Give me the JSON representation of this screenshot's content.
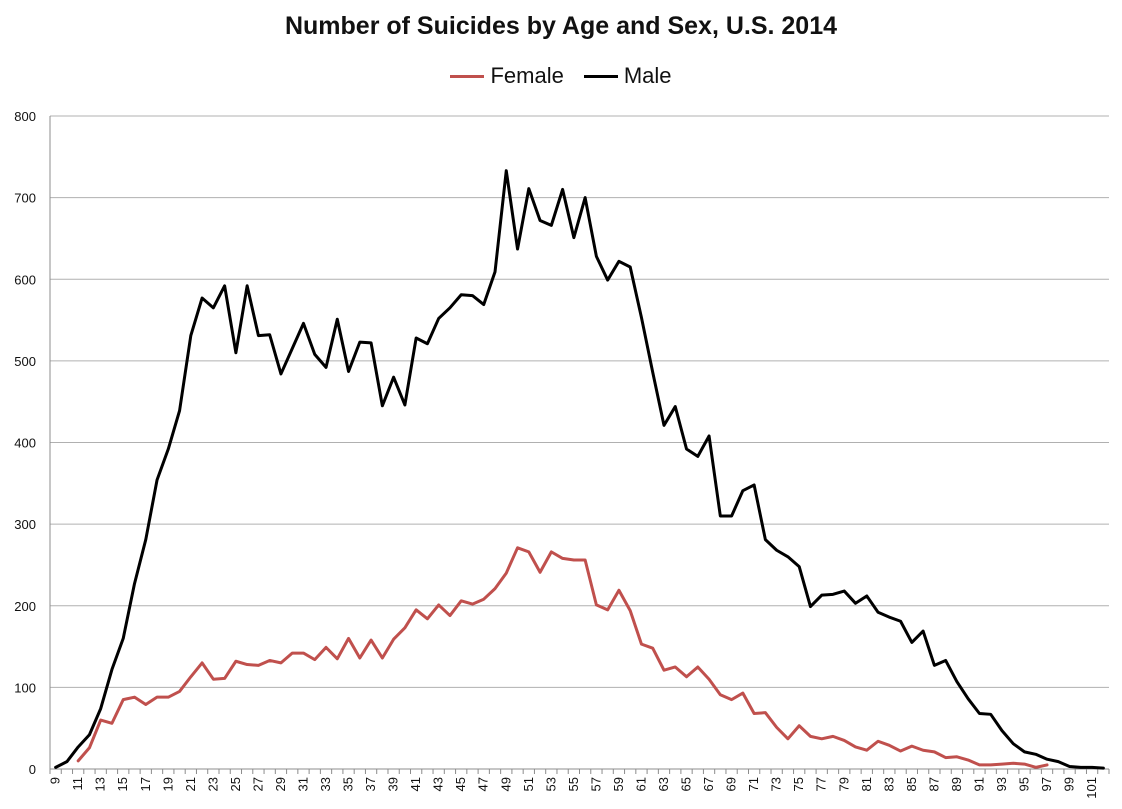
{
  "chart_data": {
    "type": "line",
    "title": "Number of Suicides by Age and Sex, U.S. 2014",
    "xlabel": "",
    "ylabel": "",
    "ylim": [
      0,
      800
    ],
    "yticks": [
      0,
      100,
      200,
      300,
      400,
      500,
      600,
      700,
      800
    ],
    "x": [
      9,
      10,
      11,
      12,
      13,
      14,
      15,
      16,
      17,
      18,
      19,
      20,
      21,
      22,
      23,
      24,
      25,
      26,
      27,
      28,
      29,
      30,
      31,
      32,
      33,
      34,
      35,
      36,
      37,
      38,
      39,
      40,
      41,
      42,
      43,
      44,
      45,
      46,
      47,
      48,
      49,
      50,
      51,
      52,
      53,
      54,
      55,
      56,
      57,
      58,
      59,
      60,
      61,
      62,
      63,
      64,
      65,
      66,
      67,
      68,
      69,
      70,
      71,
      72,
      73,
      74,
      75,
      76,
      77,
      78,
      79,
      80,
      81,
      82,
      83,
      84,
      85,
      86,
      87,
      88,
      89,
      90,
      91,
      92,
      93,
      94,
      95,
      96,
      97,
      98,
      99,
      100,
      101,
      102
    ],
    "xtick_labels": [
      "9",
      "11",
      "13",
      "15",
      "17",
      "19",
      "21",
      "23",
      "25",
      "27",
      "29",
      "31",
      "33",
      "35",
      "37",
      "39",
      "41",
      "43",
      "45",
      "47",
      "49",
      "51",
      "53",
      "55",
      "57",
      "59",
      "61",
      "63",
      "65",
      "67",
      "69",
      "71",
      "73",
      "75",
      "77",
      "79",
      "81",
      "83",
      "85",
      "87",
      "89",
      "91",
      "93",
      "95",
      "97",
      "99",
      "101"
    ],
    "grid": "horizontal",
    "legend_position": "top-center",
    "series": [
      {
        "name": "Female",
        "color": "#c0504d",
        "values": [
          null,
          null,
          10,
          26,
          60,
          56,
          85,
          88,
          79,
          88,
          88,
          95,
          113,
          130,
          110,
          111,
          132,
          128,
          127,
          133,
          130,
          142,
          142,
          134,
          149,
          135,
          160,
          136,
          158,
          136,
          159,
          173,
          195,
          184,
          201,
          188,
          206,
          202,
          208,
          221,
          240,
          271,
          266,
          241,
          266,
          258,
          256,
          256,
          201,
          195,
          219,
          194,
          153,
          148,
          121,
          125,
          113,
          125,
          110,
          91,
          85,
          93,
          68,
          69,
          51,
          37,
          53,
          40,
          37,
          40,
          35,
          27,
          23,
          34,
          29,
          22,
          28,
          23,
          21,
          14,
          15,
          11,
          5,
          5,
          6,
          7,
          6,
          2,
          5,
          null,
          null,
          null,
          null,
          null
        ]
      },
      {
        "name": "Male",
        "color": "#000000",
        "values": [
          2,
          9,
          27,
          42,
          74,
          122,
          160,
          227,
          281,
          354,
          392,
          439,
          531,
          577,
          565,
          592,
          510,
          592,
          531,
          532,
          484,
          515,
          546,
          508,
          492,
          551,
          487,
          523,
          522,
          445,
          480,
          446,
          528,
          521,
          552,
          565,
          581,
          580,
          569,
          609,
          733,
          637,
          711,
          672,
          666,
          710,
          651,
          700,
          628,
          599,
          622,
          615,
          553,
          486,
          421,
          444,
          392,
          383,
          408,
          310,
          310,
          341,
          348,
          281,
          268,
          260,
          248,
          199,
          213,
          214,
          218,
          203,
          212,
          192,
          186,
          181,
          155,
          169,
          127,
          133,
          107,
          86,
          68,
          67,
          47,
          31,
          21,
          18,
          12,
          9,
          3,
          2,
          2,
          1
        ]
      }
    ]
  }
}
